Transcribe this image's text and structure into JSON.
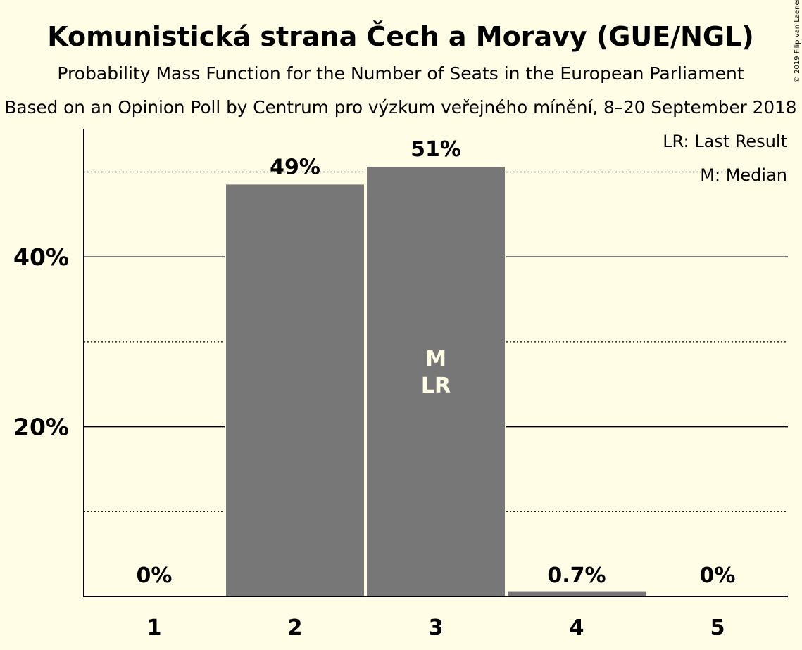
{
  "colors": {
    "background": "#FFFDE5",
    "bar": "#777777",
    "bar_outline": "#FFFDE5",
    "text": "#000000",
    "marker_text": "#FFFDE5"
  },
  "chart_data": {
    "type": "bar",
    "title": "Komunistická strana Čech a Moravy (GUE/NGL)",
    "subtitle_1": "Probability Mass Function for the Number of Seats in the European Parliament",
    "subtitle_2": "Based on an Opinion Poll by Centrum pro výzkum veřejného mínění, 8–20 September 2018",
    "copyright": "© 2019 Filip van Laenen",
    "categories": [
      "1",
      "2",
      "3",
      "4",
      "5"
    ],
    "values": [
      0,
      48.6,
      50.7,
      0.7,
      0
    ],
    "value_labels": [
      "0%",
      "49%",
      "51%",
      "0.7%",
      "0%"
    ],
    "ylim": [
      0,
      55
    ],
    "yticks_major": [
      {
        "value": 20,
        "label": "20%"
      },
      {
        "value": 40,
        "label": "40%"
      }
    ],
    "yticks_minor": [
      10,
      30,
      50
    ],
    "median_category": "3",
    "last_result_category": "3",
    "markers": {
      "median": "M",
      "last_result": "LR"
    },
    "legend": {
      "position": "top-right",
      "last_result": "LR: Last Result",
      "median": "M: Median"
    }
  }
}
